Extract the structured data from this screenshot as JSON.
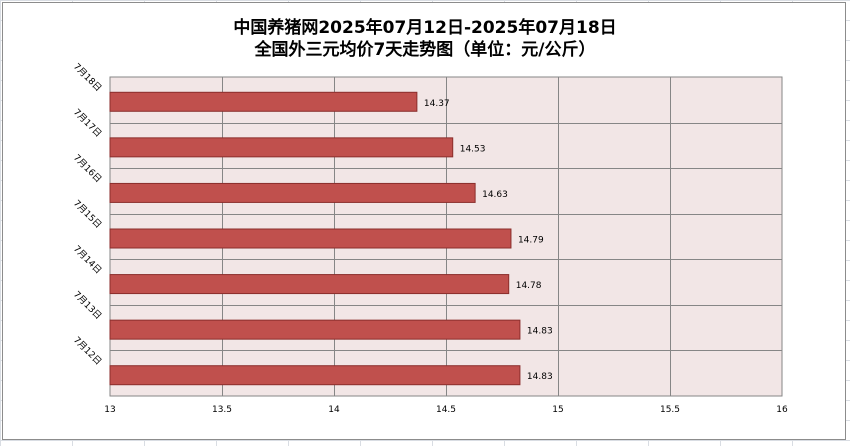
{
  "chart_data": {
    "type": "bar",
    "orientation": "horizontal",
    "title_lines": [
      "中国养猪网2025年07月12日-2025年07月18日",
      "全国外三元均价7天走势图（单位：元/公斤）"
    ],
    "categories": [
      "7月18日",
      "7月17日",
      "7月16日",
      "7月15日",
      "7月14日",
      "7月13日",
      "7月12日"
    ],
    "values": [
      14.37,
      14.53,
      14.63,
      14.79,
      14.78,
      14.83,
      14.83
    ],
    "value_labels": [
      "14.37",
      "14.53",
      "14.63",
      "14.79",
      "14.78",
      "14.83",
      "14.83"
    ],
    "xlim": [
      13,
      16
    ],
    "xticks": [
      13,
      13.5,
      14,
      14.5,
      15,
      15.5,
      16
    ],
    "xtick_labels": [
      "13",
      "13.5",
      "14",
      "14.5",
      "15",
      "15.5",
      "16"
    ],
    "grid": true,
    "legend": "none",
    "bar_color": "#c0504d",
    "bar_border_color": "#8b2e2c",
    "plot_background": "#f2e6e6"
  }
}
